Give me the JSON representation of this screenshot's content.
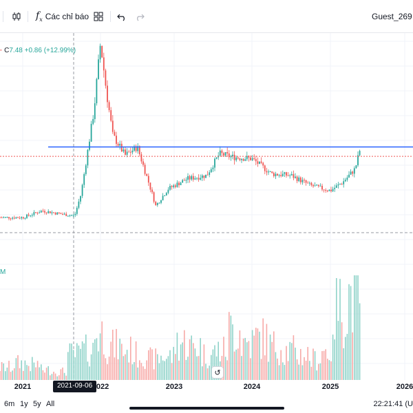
{
  "toolbar": {
    "indicators_label": "Các chỉ báo",
    "user_label": "Guest_269"
  },
  "legend": {
    "close_prefix": "C",
    "close_value": "7.48",
    "change": "+0.86 (+12.99%)"
  },
  "volume_label": "M",
  "crosshair_date": "2021-09-06",
  "colors": {
    "up": "#26a69a",
    "down": "#ef5350",
    "up_volume": "#8fd3c9",
    "down_volume": "#f7a9a7",
    "hline": "#2962ff",
    "last_price_line": "#ef5350"
  },
  "ranges": [
    "6m",
    "1y",
    "5y",
    "All"
  ],
  "clock": "22:21:41 (U",
  "chart_data": {
    "type": "candlestick",
    "title": "",
    "x_tick_labels": [
      "2021",
      "2022",
      "2023",
      "2024",
      "2025",
      "2026"
    ],
    "series": [
      {
        "date": "2021-01",
        "value": 3.1
      },
      {
        "date": "2021-04",
        "value": 3.5
      },
      {
        "date": "2021-07",
        "value": 3.3
      },
      {
        "date": "2021-09",
        "value": 3.2
      },
      {
        "date": "2021-10",
        "value": 4.5
      },
      {
        "date": "2021-11",
        "value": 7.0
      },
      {
        "date": "2021-12",
        "value": 9.5
      },
      {
        "date": "2022-01",
        "value": 13.5
      },
      {
        "date": "2022-02",
        "value": 10.5
      },
      {
        "date": "2022-03",
        "value": 8.0
      },
      {
        "date": "2022-05",
        "value": 6.8
      },
      {
        "date": "2022-07",
        "value": 7.3
      },
      {
        "date": "2022-09",
        "value": 5.0
      },
      {
        "date": "2022-10",
        "value": 3.8
      },
      {
        "date": "2022-12",
        "value": 4.8
      },
      {
        "date": "2023-03",
        "value": 5.4
      },
      {
        "date": "2023-06",
        "value": 5.6
      },
      {
        "date": "2023-08",
        "value": 6.9
      },
      {
        "date": "2023-10",
        "value": 6.7
      },
      {
        "date": "2024-01",
        "value": 6.6
      },
      {
        "date": "2024-04",
        "value": 5.7
      },
      {
        "date": "2024-07",
        "value": 5.6
      },
      {
        "date": "2024-10",
        "value": 5.0
      },
      {
        "date": "2025-01",
        "value": 4.7
      },
      {
        "date": "2025-03",
        "value": 5.2
      },
      {
        "date": "2025-05",
        "value": 6.0
      },
      {
        "date": "2025-06",
        "value": 7.48
      }
    ],
    "horizontal_line": 7.3,
    "volume_relative": [
      0.15,
      0.2,
      0.18,
      0.12,
      0.1,
      0.3,
      0.35,
      0.55,
      0.4,
      0.35,
      0.3,
      0.25,
      0.28,
      0.45,
      0.4,
      0.3,
      0.35,
      0.6,
      0.45,
      0.5,
      0.4,
      0.35,
      0.3,
      0.25,
      0.35,
      0.85,
      1.0
    ]
  }
}
